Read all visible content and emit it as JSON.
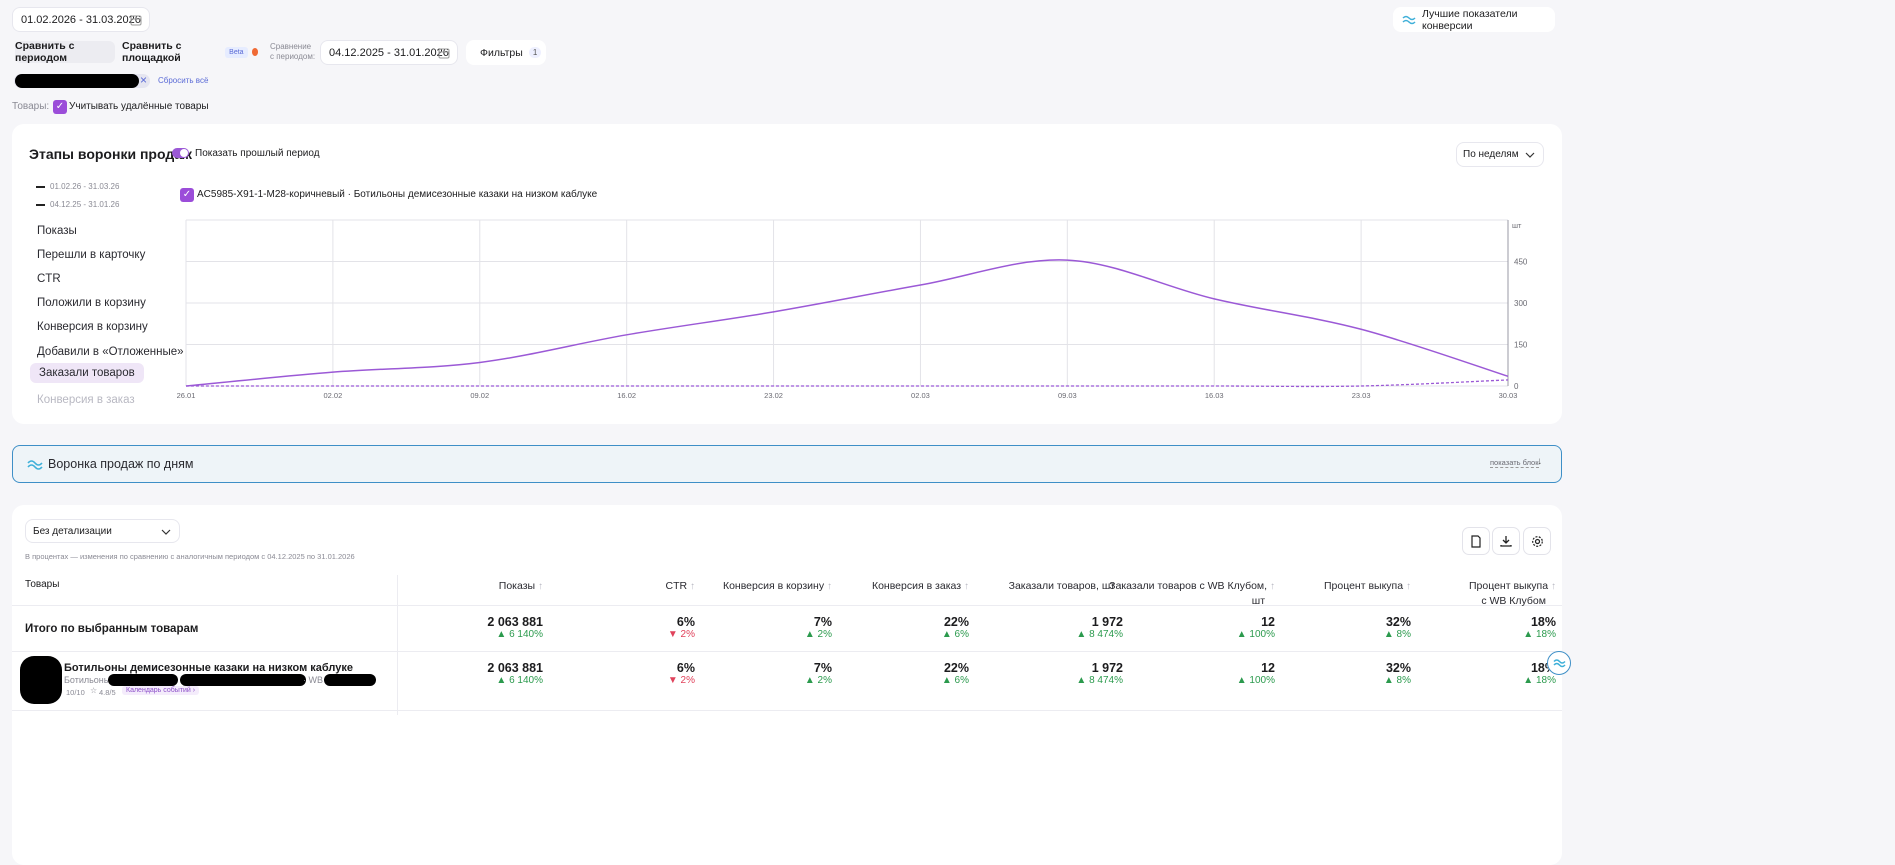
{
  "top": {
    "date_range": "01.02.2026 - 31.03.2026",
    "best_conv_label": "Лучшие показатели конверсии",
    "compare_period_label": "Сравнить с периодом",
    "compare_platform_label": "Сравнить с площадкой",
    "beta_label": "Beta",
    "compare_caption_1": "Сравнение",
    "compare_caption_2": "с периодом:",
    "compare_range": "04.12.2025 - 31.01.2026",
    "filters_label": "Фильтры",
    "filters_count": "1",
    "reset_label": "Сбросить всё",
    "goods_label": "Товары:",
    "deleted_label": "Учитывать удалённые товары"
  },
  "funnel": {
    "title": "Этапы воронки продаж",
    "show_prev_label": "Показать прошлый период",
    "granularity": "По неделям",
    "legend_current": "01.02.26 - 31.03.26",
    "legend_prev": "04.12.25 - 31.01.26",
    "product_label": "AC5985-X91-1-M28-коричневый · Ботильоны демисезонные казаки на низком каблуке",
    "metrics": [
      "Показы",
      "Перешли в карточку",
      "CTR",
      "Положили в корзину",
      "Конверсия в корзину",
      "Добавили в «Отложенные»",
      "Заказали товаров",
      "Конверсия в заказ"
    ],
    "active_metric": "Заказали товаров"
  },
  "chart_data": {
    "type": "line",
    "x": [
      "26.01",
      "02.02",
      "09.02",
      "16.02",
      "23.02",
      "02.03",
      "09.03",
      "16.03",
      "23.03",
      "30.03"
    ],
    "series": [
      {
        "name": "01.02.26 - 31.03.26",
        "values": [
          0,
          50,
          85,
          185,
          268,
          365,
          455,
          315,
          205,
          35
        ],
        "color": "#9b59d6",
        "style": "solid"
      },
      {
        "name": "04.12.25 - 31.01.26",
        "values": [
          0,
          0,
          0,
          0,
          0,
          0,
          0,
          0,
          0,
          22
        ],
        "color": "#9b59d6",
        "style": "dashed"
      }
    ],
    "ylabel": "шт",
    "yticks": [
      "0",
      "150",
      "300",
      "450"
    ],
    "ylim": [
      0,
      600
    ],
    "grid": true
  },
  "daily": {
    "title": "Воронка продаж по дням",
    "show_block": "показать блок"
  },
  "table": {
    "detail_select": "Без детализации",
    "note": "В процентах — изменения по сравнению с аналогичным периодом с 04.12.2025 по 31.01.2026",
    "col_goods": "Товары",
    "columns": [
      {
        "label": "Показы"
      },
      {
        "label": "CTR"
      },
      {
        "label": "Конверсия в корзину"
      },
      {
        "label": "Конверсия в заказ"
      },
      {
        "label": "Заказали товаров, шт"
      },
      {
        "label": "Заказали товаров с WB Клубом,",
        "label2": "шт"
      },
      {
        "label": "Процент выкупа"
      },
      {
        "label": "Процент выкупа",
        "label2": "с WB Клубом"
      }
    ],
    "total_label": "Итого по выбранным товарам",
    "total": [
      {
        "v": "2 063 881",
        "d": "6 140%",
        "dir": "up"
      },
      {
        "v": "6%",
        "d": "2%",
        "dir": "down"
      },
      {
        "v": "7%",
        "d": "2%",
        "dir": "up"
      },
      {
        "v": "22%",
        "d": "6%",
        "dir": "up"
      },
      {
        "v": "1 972",
        "d": "8 474%",
        "dir": "up"
      },
      {
        "v": "12",
        "d": "100%",
        "dir": "up"
      },
      {
        "v": "32%",
        "d": "8%",
        "dir": "up"
      },
      {
        "v": "18%",
        "d": "18%",
        "dir": "up"
      }
    ],
    "product": {
      "name": "Ботильоны демисезонные казаки на низком каблуке",
      "sub_prefix": "Ботильоны ·",
      "sub_wb": "· WB",
      "score": "10/10",
      "rating": "4.8/5",
      "calendar": "Календарь событий"
    },
    "row": [
      {
        "v": "2 063 881",
        "d": "6 140%",
        "dir": "up"
      },
      {
        "v": "6%",
        "d": "2%",
        "dir": "down"
      },
      {
        "v": "7%",
        "d": "2%",
        "dir": "up"
      },
      {
        "v": "22%",
        "d": "6%",
        "dir": "up"
      },
      {
        "v": "1 972",
        "d": "8 474%",
        "dir": "up"
      },
      {
        "v": "12",
        "d": "100%",
        "dir": "up"
      },
      {
        "v": "32%",
        "d": "8%",
        "dir": "up"
      },
      {
        "v": "18%",
        "d": "18%",
        "dir": "up"
      }
    ]
  }
}
